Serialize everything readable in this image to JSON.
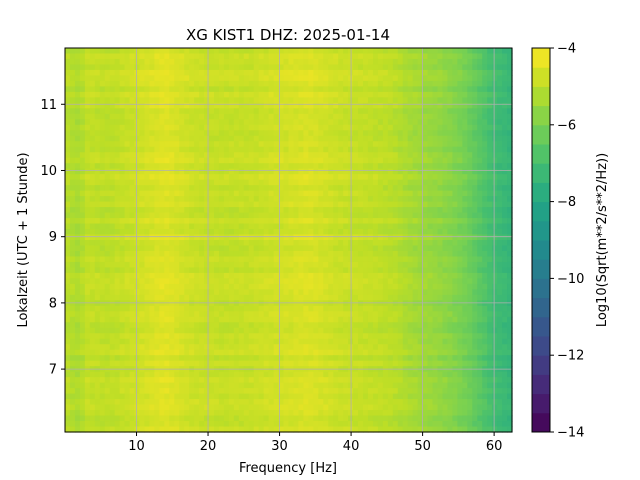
{
  "chart_data": {
    "type": "heatmap",
    "title": "XG KIST1  DHZ: 2025-01-14",
    "xlabel": "Frequency [Hz]",
    "ylabel": "Lokalzeit (UTC + 1 Stunde)",
    "colorbar_label": "Log10(Sqrt(m**2/s**2/Hz))",
    "colormap": "viridis",
    "xlim": [
      0,
      62.5
    ],
    "ylim": [
      11.85,
      6.05
    ],
    "clim": [
      -14,
      -4
    ],
    "x_ticks": [
      10,
      20,
      30,
      40,
      50,
      60
    ],
    "y_ticks": [
      7,
      8,
      9,
      10,
      11
    ],
    "colorbar_ticks": [
      -4,
      -6,
      -8,
      -10,
      -12,
      -14
    ],
    "grid": true,
    "frequency_profile": {
      "x": [
        0,
        2,
        3,
        6,
        10,
        14,
        18,
        22,
        26,
        30,
        34,
        38,
        42,
        46,
        48,
        50,
        52,
        54,
        56,
        58,
        60,
        62.5
      ],
      "values": [
        -5.0,
        -5.3,
        -4.9,
        -5.0,
        -4.75,
        -4.45,
        -4.8,
        -4.9,
        -4.85,
        -4.7,
        -4.55,
        -4.8,
        -4.9,
        -5.05,
        -5.3,
        -5.45,
        -5.6,
        -5.8,
        -6.1,
        -6.6,
        -7.1,
        -7.4
      ]
    },
    "colors": {
      "grid": "#b0b0b0",
      "axes": "#000000"
    }
  }
}
